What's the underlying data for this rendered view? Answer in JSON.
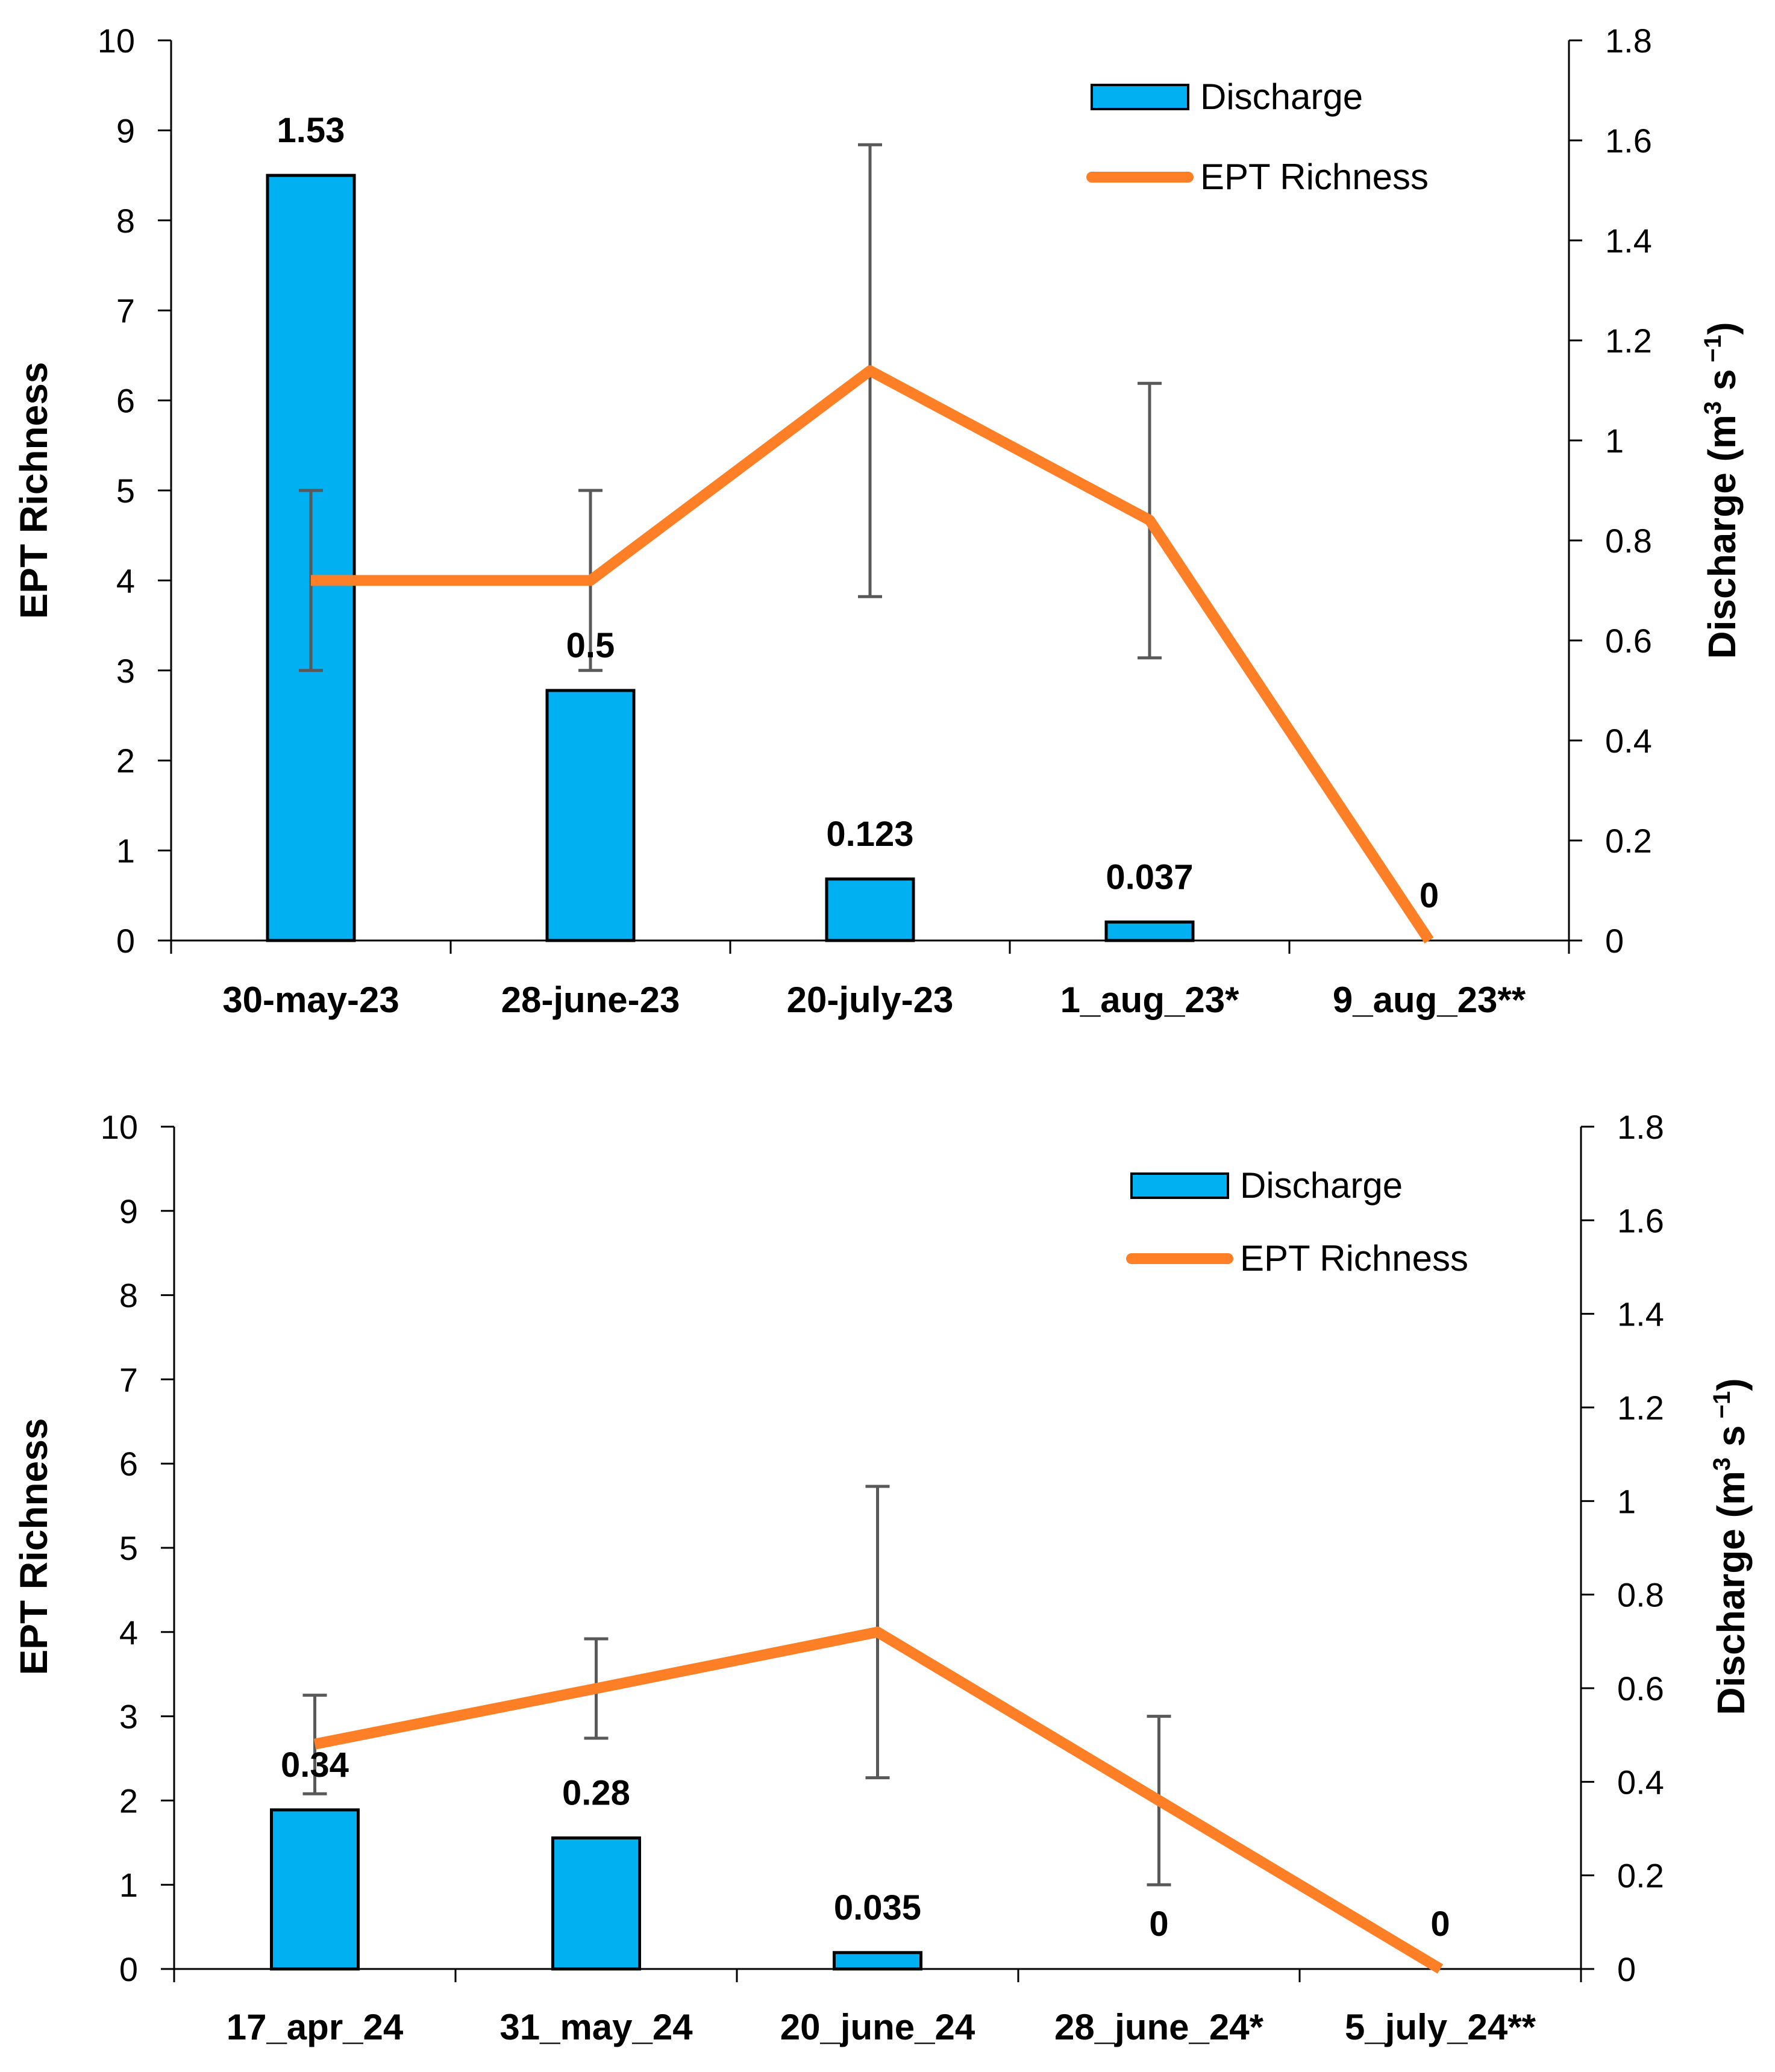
{
  "colors": {
    "bar_fill": "#00B0F0",
    "bar_edge": "#000000",
    "line": "#FF7F27",
    "error_bar": "#595959",
    "axis": "#000000"
  },
  "chart_data": [
    {
      "type": "bar",
      "panel": "top",
      "categories": [
        "30-may-23",
        "28-june-23",
        "20-july-23",
        "1_aug_23*",
        "9_aug_23**"
      ],
      "ylabel_left": "EPT Richness",
      "ylabel_right_main": "Discharge (m",
      "ylabel_right_sup1": "3",
      "ylabel_right_mid": " s",
      "ylabel_right_sup2": " −1",
      "ylabel_right_end": ")",
      "ylim_left": [
        0,
        10
      ],
      "ylim_right": [
        0,
        1.8
      ],
      "left_ticks": [
        "0",
        "1",
        "2",
        "3",
        "4",
        "5",
        "6",
        "7",
        "8",
        "9",
        "10"
      ],
      "right_ticks": [
        "0",
        "0.2",
        "0.4",
        "0.6",
        "0.8",
        "1",
        "1.2",
        "1.4",
        "1.6",
        "1.8"
      ],
      "legend": [
        "Discharge",
        "EPT Richness"
      ],
      "series": [
        {
          "name": "Discharge",
          "axis": "right",
          "type": "bar",
          "values": [
            1.53,
            0.5,
            0.123,
            0.037,
            0
          ],
          "labels": [
            "1.53",
            "0.5",
            "0.123",
            "0.037",
            "0"
          ]
        },
        {
          "name": "EPT Richness",
          "axis": "left",
          "type": "line",
          "values": [
            4.0,
            4.0,
            6.33,
            4.67,
            0
          ],
          "error_low": [
            3.0,
            3.0,
            3.82,
            3.14,
            null
          ],
          "error_high": [
            5.0,
            5.0,
            8.84,
            6.19,
            null
          ]
        }
      ]
    },
    {
      "type": "bar",
      "panel": "bottom",
      "categories": [
        "17_apr_24",
        "31_may_24",
        "20_june_24",
        "28_june_24*",
        "5_july_24**"
      ],
      "ylabel_left": "EPT Richness",
      "ylabel_right_main": "Discharge (m",
      "ylabel_right_sup1": "3",
      "ylabel_right_mid": " s",
      "ylabel_right_sup2": " −1",
      "ylabel_right_end": ")",
      "ylim_left": [
        0,
        10
      ],
      "ylim_right": [
        0,
        1.8
      ],
      "left_ticks": [
        "0",
        "1",
        "2",
        "3",
        "4",
        "5",
        "6",
        "7",
        "8",
        "9",
        "10"
      ],
      "right_ticks": [
        "0",
        "0.2",
        "0.4",
        "0.6",
        "0.8",
        "1",
        "1.2",
        "1.4",
        "1.6",
        "1.8"
      ],
      "legend": [
        "Discharge",
        "EPT Richness"
      ],
      "series": [
        {
          "name": "Discharge",
          "axis": "right",
          "type": "bar",
          "values": [
            0.34,
            0.28,
            0.035,
            0,
            0
          ],
          "labels": [
            "0.34",
            "0.28",
            "0.035",
            "0",
            "0"
          ]
        },
        {
          "name": "EPT Richness",
          "axis": "left",
          "type": "line",
          "values": [
            2.67,
            3.33,
            4.0,
            2.0,
            0
          ],
          "error_low": [
            2.08,
            2.74,
            2.27,
            1.0,
            null
          ],
          "error_high": [
            3.25,
            3.92,
            5.73,
            3.0,
            null
          ]
        }
      ]
    }
  ]
}
